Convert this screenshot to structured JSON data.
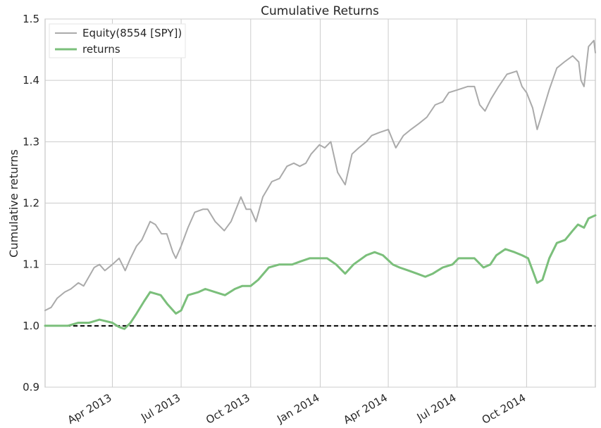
{
  "chart_data": {
    "type": "line",
    "title": "Cumulative Returns",
    "xlabel": "",
    "ylabel": "Cumulative returns",
    "x_range": [
      "2013-01-02",
      "2014-12-31"
    ],
    "ylim": [
      0.9,
      1.5
    ],
    "y_ticks": [
      0.9,
      1.0,
      1.1,
      1.2,
      1.3,
      1.4,
      1.5
    ],
    "y_tick_labels": [
      "0.9",
      "1.0",
      "1.1",
      "1.2",
      "1.3",
      "1.4",
      "1.5"
    ],
    "x_ticks": [
      "2013-04-01",
      "2013-07-01",
      "2013-10-01",
      "2014-01-01",
      "2014-04-01",
      "2014-07-01",
      "2014-10-01"
    ],
    "x_tick_labels": [
      "Apr 2013",
      "Jul 2013",
      "Oct 2013",
      "Jan 2014",
      "Apr 2014",
      "Jul 2014",
      "Oct 2014"
    ],
    "grid": true,
    "legend_position": "top-left",
    "baseline": {
      "y": 1.0,
      "style": "dashed",
      "color": "#000000"
    },
    "series": [
      {
        "name": "Equity(8554 [SPY])",
        "color": "#aaaaaa",
        "points": [
          [
            "2013-01-02",
            1.025
          ],
          [
            "2013-01-10",
            1.03
          ],
          [
            "2013-01-18",
            1.045
          ],
          [
            "2013-01-28",
            1.055
          ],
          [
            "2013-02-05",
            1.06
          ],
          [
            "2013-02-15",
            1.07
          ],
          [
            "2013-02-22",
            1.065
          ],
          [
            "2013-03-01",
            1.08
          ],
          [
            "2013-03-08",
            1.095
          ],
          [
            "2013-03-15",
            1.1
          ],
          [
            "2013-03-22",
            1.09
          ],
          [
            "2013-04-01",
            1.1
          ],
          [
            "2013-04-10",
            1.11
          ],
          [
            "2013-04-18",
            1.09
          ],
          [
            "2013-04-25",
            1.11
          ],
          [
            "2013-05-03",
            1.13
          ],
          [
            "2013-05-10",
            1.14
          ],
          [
            "2013-05-21",
            1.17
          ],
          [
            "2013-05-28",
            1.165
          ],
          [
            "2013-06-05",
            1.15
          ],
          [
            "2013-06-12",
            1.15
          ],
          [
            "2013-06-20",
            1.12
          ],
          [
            "2013-06-24",
            1.11
          ],
          [
            "2013-07-01",
            1.13
          ],
          [
            "2013-07-10",
            1.16
          ],
          [
            "2013-07-19",
            1.185
          ],
          [
            "2013-07-30",
            1.19
          ],
          [
            "2013-08-05",
            1.19
          ],
          [
            "2013-08-15",
            1.17
          ],
          [
            "2013-08-27",
            1.155
          ],
          [
            "2013-09-05",
            1.17
          ],
          [
            "2013-09-18",
            1.21
          ],
          [
            "2013-09-25",
            1.19
          ],
          [
            "2013-10-01",
            1.19
          ],
          [
            "2013-10-08",
            1.17
          ],
          [
            "2013-10-17",
            1.21
          ],
          [
            "2013-10-29",
            1.235
          ],
          [
            "2013-11-08",
            1.24
          ],
          [
            "2013-11-18",
            1.26
          ],
          [
            "2013-11-27",
            1.265
          ],
          [
            "2013-12-05",
            1.26
          ],
          [
            "2013-12-13",
            1.265
          ],
          [
            "2013-12-20",
            1.28
          ],
          [
            "2013-12-31",
            1.295
          ],
          [
            "2014-01-07",
            1.29
          ],
          [
            "2014-01-15",
            1.3
          ],
          [
            "2014-01-24",
            1.25
          ],
          [
            "2014-02-03",
            1.23
          ],
          [
            "2014-02-12",
            1.28
          ],
          [
            "2014-02-21",
            1.29
          ],
          [
            "2014-03-03",
            1.3
          ],
          [
            "2014-03-10",
            1.31
          ],
          [
            "2014-03-20",
            1.315
          ],
          [
            "2014-04-01",
            1.32
          ],
          [
            "2014-04-11",
            1.29
          ],
          [
            "2014-04-21",
            1.31
          ],
          [
            "2014-05-01",
            1.32
          ],
          [
            "2014-05-12",
            1.33
          ],
          [
            "2014-05-22",
            1.34
          ],
          [
            "2014-06-02",
            1.36
          ],
          [
            "2014-06-12",
            1.365
          ],
          [
            "2014-06-20",
            1.38
          ],
          [
            "2014-07-03",
            1.385
          ],
          [
            "2014-07-15",
            1.39
          ],
          [
            "2014-07-24",
            1.39
          ],
          [
            "2014-07-31",
            1.36
          ],
          [
            "2014-08-07",
            1.35
          ],
          [
            "2014-08-15",
            1.37
          ],
          [
            "2014-08-25",
            1.39
          ],
          [
            "2014-09-05",
            1.41
          ],
          [
            "2014-09-18",
            1.415
          ],
          [
            "2014-09-25",
            1.39
          ],
          [
            "2014-10-01",
            1.38
          ],
          [
            "2014-10-09",
            1.355
          ],
          [
            "2014-10-15",
            1.32
          ],
          [
            "2014-10-20",
            1.34
          ],
          [
            "2014-10-31",
            1.385
          ],
          [
            "2014-11-10",
            1.42
          ],
          [
            "2014-11-20",
            1.43
          ],
          [
            "2014-12-01",
            1.44
          ],
          [
            "2014-12-09",
            1.43
          ],
          [
            "2014-12-12",
            1.4
          ],
          [
            "2014-12-16",
            1.39
          ],
          [
            "2014-12-22",
            1.455
          ],
          [
            "2014-12-29",
            1.465
          ],
          [
            "2014-12-31",
            1.445
          ]
        ]
      },
      {
        "name": "returns",
        "color": "#7bbf7b",
        "points": [
          [
            "2013-01-02",
            1.0
          ],
          [
            "2013-01-15",
            1.0
          ],
          [
            "2013-02-01",
            1.0
          ],
          [
            "2013-02-15",
            1.005
          ],
          [
            "2013-03-01",
            1.005
          ],
          [
            "2013-03-15",
            1.01
          ],
          [
            "2013-04-01",
            1.005
          ],
          [
            "2013-04-10",
            0.998
          ],
          [
            "2013-04-17",
            0.995
          ],
          [
            "2013-04-25",
            1.005
          ],
          [
            "2013-05-03",
            1.02
          ],
          [
            "2013-05-13",
            1.04
          ],
          [
            "2013-05-21",
            1.055
          ],
          [
            "2013-06-04",
            1.05
          ],
          [
            "2013-06-13",
            1.035
          ],
          [
            "2013-06-24",
            1.02
          ],
          [
            "2013-07-01",
            1.025
          ],
          [
            "2013-07-10",
            1.05
          ],
          [
            "2013-07-24",
            1.055
          ],
          [
            "2013-08-02",
            1.06
          ],
          [
            "2013-08-15",
            1.055
          ],
          [
            "2013-08-28",
            1.05
          ],
          [
            "2013-09-10",
            1.06
          ],
          [
            "2013-09-20",
            1.065
          ],
          [
            "2013-10-01",
            1.065
          ],
          [
            "2013-10-11",
            1.075
          ],
          [
            "2013-10-25",
            1.095
          ],
          [
            "2013-11-08",
            1.1
          ],
          [
            "2013-11-25",
            1.1
          ],
          [
            "2013-12-06",
            1.105
          ],
          [
            "2013-12-18",
            1.11
          ],
          [
            "2013-12-31",
            1.11
          ],
          [
            "2014-01-10",
            1.11
          ],
          [
            "2014-01-22",
            1.1
          ],
          [
            "2014-02-03",
            1.085
          ],
          [
            "2014-02-14",
            1.1
          ],
          [
            "2014-03-03",
            1.115
          ],
          [
            "2014-03-14",
            1.12
          ],
          [
            "2014-03-25",
            1.115
          ],
          [
            "2014-04-07",
            1.1
          ],
          [
            "2014-04-16",
            1.095
          ],
          [
            "2014-04-28",
            1.09
          ],
          [
            "2014-05-09",
            1.085
          ],
          [
            "2014-05-20",
            1.08
          ],
          [
            "2014-05-30",
            1.085
          ],
          [
            "2014-06-12",
            1.095
          ],
          [
            "2014-06-25",
            1.1
          ],
          [
            "2014-07-03",
            1.11
          ],
          [
            "2014-07-15",
            1.11
          ],
          [
            "2014-07-24",
            1.11
          ],
          [
            "2014-08-05",
            1.095
          ],
          [
            "2014-08-14",
            1.1
          ],
          [
            "2014-08-22",
            1.115
          ],
          [
            "2014-09-03",
            1.125
          ],
          [
            "2014-09-15",
            1.12
          ],
          [
            "2014-09-25",
            1.115
          ],
          [
            "2014-10-03",
            1.11
          ],
          [
            "2014-10-09",
            1.09
          ],
          [
            "2014-10-15",
            1.07
          ],
          [
            "2014-10-22",
            1.075
          ],
          [
            "2014-10-31",
            1.11
          ],
          [
            "2014-11-10",
            1.135
          ],
          [
            "2014-11-21",
            1.14
          ],
          [
            "2014-12-01",
            1.155
          ],
          [
            "2014-12-08",
            1.165
          ],
          [
            "2014-12-16",
            1.16
          ],
          [
            "2014-12-22",
            1.175
          ],
          [
            "2014-12-31",
            1.18
          ]
        ]
      }
    ]
  }
}
